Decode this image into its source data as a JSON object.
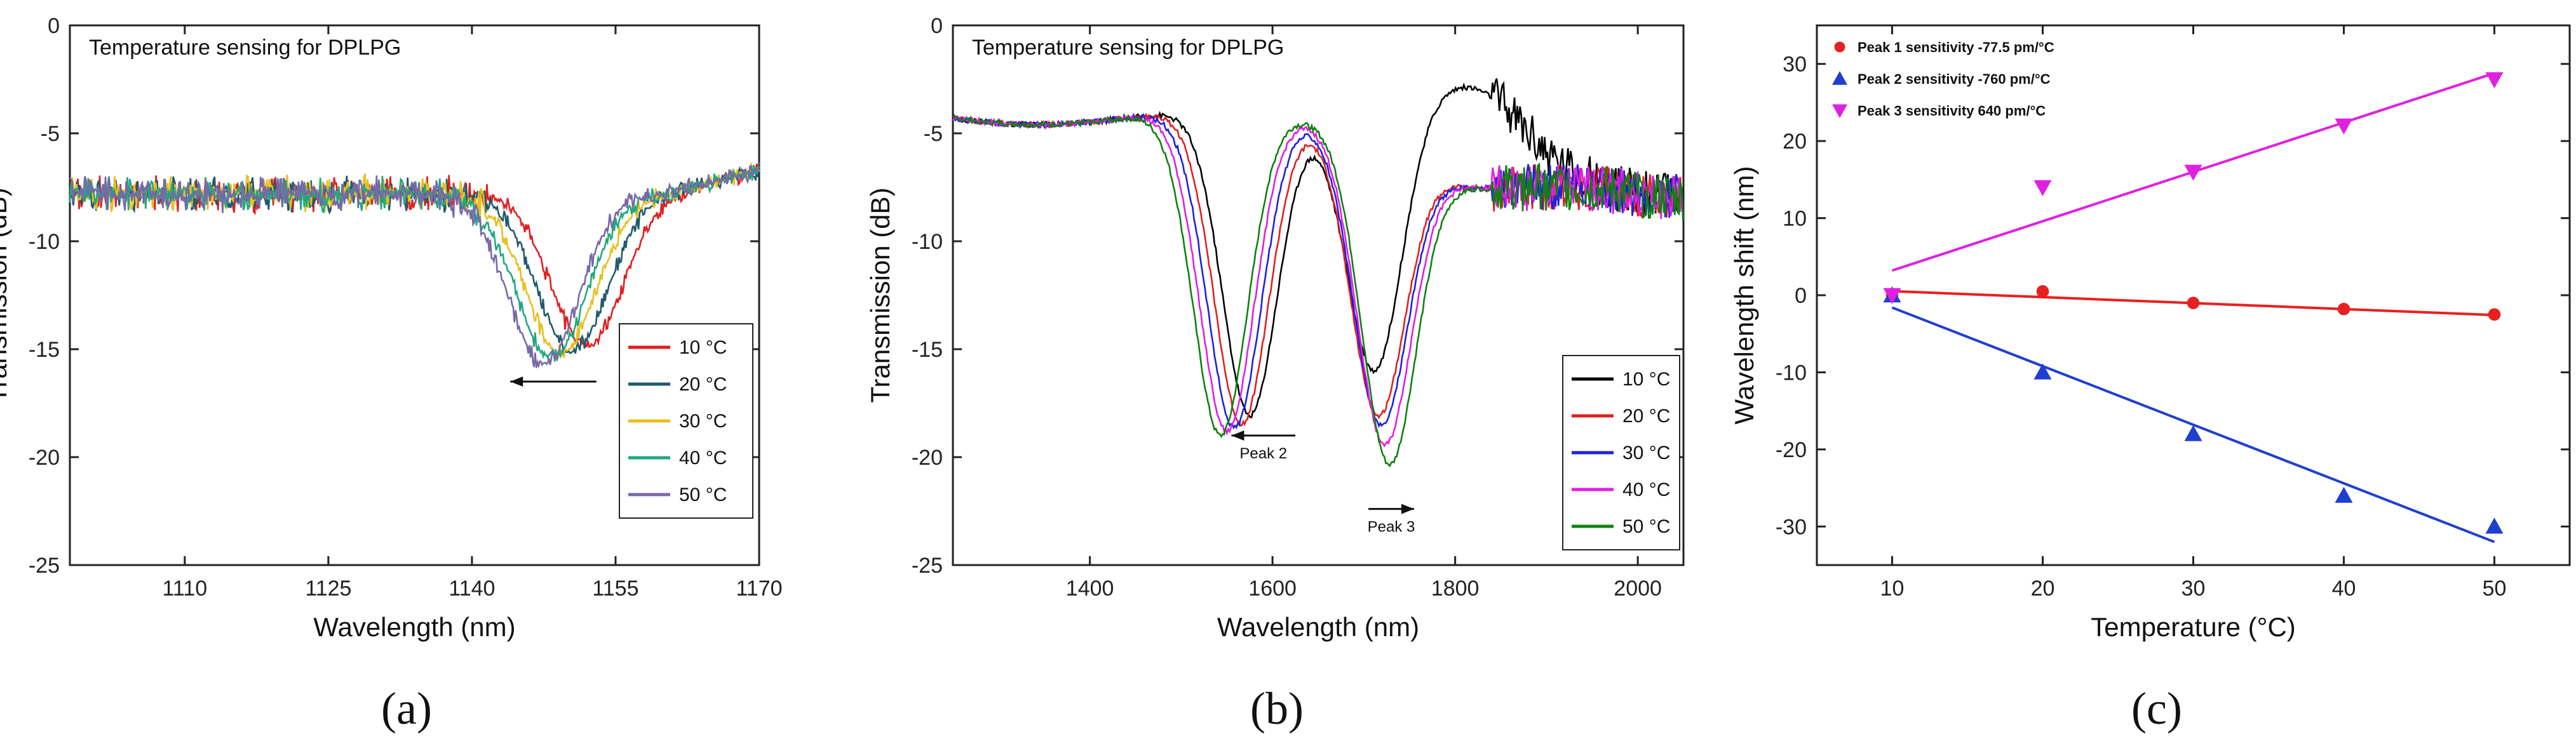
{
  "chart_data": [
    {
      "type": "line",
      "panel_label": "(a)",
      "title": "Temperature sensing for DPLPG",
      "xlabel": "Wavelength (nm)",
      "ylabel": "Transmission (dB)",
      "xlim": [
        1098,
        1170
      ],
      "ylim": [
        -25,
        0
      ],
      "xticks": [
        1110,
        1125,
        1140,
        1155,
        1170
      ],
      "yticks": [
        0,
        -5,
        -10,
        -15,
        -20,
        -25
      ],
      "legend_position": "bottom-right",
      "annotations": [
        {
          "type": "arrow",
          "direction": "left",
          "text": "",
          "x_start": 1153,
          "x_end": 1144,
          "y": -16.5
        }
      ],
      "series": [
        {
          "name": "10 °C",
          "color": "#e02020",
          "baseline": -7.8,
          "dips": [
            {
              "center": 1152.0,
              "depth": 7.1,
              "width": 5.2
            }
          ]
        },
        {
          "name": "20 °C",
          "color": "#1f5a6e",
          "baseline": -7.8,
          "dips": [
            {
              "center": 1150.5,
              "depth": 7.3,
              "width": 5.2
            }
          ]
        },
        {
          "name": "30 °C",
          "color": "#e8c020",
          "baseline": -7.8,
          "dips": [
            {
              "center": 1149.3,
              "depth": 7.4,
              "width": 5.2
            }
          ]
        },
        {
          "name": "40 °C",
          "color": "#20a880",
          "baseline": -7.8,
          "dips": [
            {
              "center": 1148.3,
              "depth": 7.6,
              "width": 5.2
            }
          ]
        },
        {
          "name": "50 °C",
          "color": "#7868a8",
          "baseline": -7.8,
          "dips": [
            {
              "center": 1147.5,
              "depth": 7.9,
              "width": 5.2
            }
          ]
        }
      ]
    },
    {
      "type": "line",
      "panel_label": "(b)",
      "title": "Temperature sensing for DPLPG",
      "xlabel": "Wavelength (nm)",
      "ylabel": "Transmission (dB)",
      "xlim": [
        1250,
        2050
      ],
      "ylim": [
        -25,
        0
      ],
      "xticks": [
        1400,
        1600,
        1800,
        2000
      ],
      "yticks": [
        0,
        -5,
        -10,
        -15,
        -20,
        -25
      ],
      "legend_position": "bottom-right",
      "annotations": [
        {
          "type": "arrow",
          "direction": "left",
          "text": "Peak 2",
          "x_start": 1625,
          "x_end": 1555,
          "y": -19.0
        },
        {
          "type": "arrow",
          "direction": "right",
          "text": "Peak 3",
          "x_start": 1705,
          "x_end": 1755,
          "y": -22.4
        }
      ],
      "series": [
        {
          "name": "10 °C",
          "color": "#000000",
          "dips": [
            {
              "center": 1575,
              "depth": 14.0,
              "width": 42
            },
            {
              "center": 1712,
              "depth": 12.0,
              "width": 42
            }
          ],
          "high_peak": {
            "center": 1815,
            "height": 4.6,
            "width": 85
          }
        },
        {
          "name": "20 °C",
          "color": "#e02020",
          "dips": [
            {
              "center": 1566,
              "depth": 14.4,
              "width": 42
            },
            {
              "center": 1715,
              "depth": 13.0,
              "width": 42
            }
          ],
          "high_peak": {
            "center": 1815,
            "height": 0,
            "width": 85
          }
        },
        {
          "name": "30 °C",
          "color": "#2020e0",
          "dips": [
            {
              "center": 1558,
              "depth": 14.6,
              "width": 42
            },
            {
              "center": 1718,
              "depth": 13.4,
              "width": 42
            }
          ],
          "high_peak": {
            "center": 1815,
            "height": 0,
            "width": 85
          }
        },
        {
          "name": "40 °C",
          "color": "#e020e0",
          "dips": [
            {
              "center": 1550,
              "depth": 14.8,
              "width": 42
            },
            {
              "center": 1722,
              "depth": 14.2,
              "width": 42
            }
          ],
          "high_peak": {
            "center": 1815,
            "height": 0,
            "width": 85
          }
        },
        {
          "name": "50 °C",
          "color": "#108010",
          "dips": [
            {
              "center": 1543,
              "depth": 15.0,
              "width": 42
            },
            {
              "center": 1727,
              "depth": 15.0,
              "width": 42
            }
          ],
          "high_peak": {
            "center": 1815,
            "height": 0,
            "width": 85
          }
        }
      ]
    },
    {
      "type": "scatter",
      "panel_label": "(c)",
      "title": "",
      "xlabel": "Temperature (°C)",
      "ylabel": "Wavelength shift (nm)",
      "xlim": [
        5,
        55
      ],
      "ylim": [
        -35,
        35
      ],
      "xticks": [
        10,
        20,
        30,
        40,
        50
      ],
      "yticks": [
        30,
        20,
        10,
        0,
        -10,
        -20,
        -30
      ],
      "legend_position": "top-left",
      "series": [
        {
          "name": "Peak 1 sensitivity -77.5 pm/°C",
          "color": "#e82020",
          "marker": "circle",
          "x": [
            10,
            20,
            30,
            40,
            50
          ],
          "y": [
            0,
            0.5,
            -1.0,
            -1.8,
            -2.5
          ],
          "fit": {
            "slope": -0.0775,
            "intercept": 1.3
          }
        },
        {
          "name": "Peak 2 sensitivity -760 pm/°C",
          "color": "#1f3fd0",
          "marker": "triangle-up",
          "x": [
            10,
            20,
            30,
            40,
            50
          ],
          "y": [
            0,
            -10,
            -18,
            -26,
            -30
          ],
          "fit": {
            "slope": -0.76,
            "intercept": 6.0
          }
        },
        {
          "name": "Peak 3 sensitivity 640 pm/°C",
          "color": "#e020e0",
          "marker": "triangle-down",
          "x": [
            10,
            20,
            30,
            40,
            50
          ],
          "y": [
            0,
            14,
            16,
            22,
            28
          ],
          "fit": {
            "slope": 0.64,
            "intercept": -3.2
          }
        }
      ]
    }
  ]
}
